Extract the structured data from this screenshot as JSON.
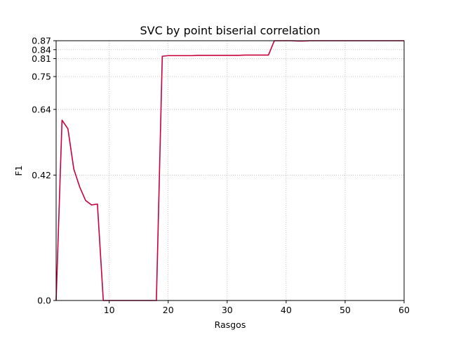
{
  "chart_data": {
    "type": "line",
    "title": "SVC by point biserial correlation",
    "xlabel": "Rasgos",
    "ylabel": "F1",
    "xlim": [
      1,
      60
    ],
    "ylim": [
      0,
      0.87
    ],
    "xticks": [
      10,
      20,
      30,
      40,
      50,
      60
    ],
    "xtick_labels": [
      "10",
      "20",
      "30",
      "40",
      "50",
      "60"
    ],
    "yticks": [
      0.0,
      0.42,
      0.64,
      0.75,
      0.81,
      0.84,
      0.87
    ],
    "ytick_labels": [
      "0.0",
      "0.42",
      "0.64",
      "0.75",
      "0.81",
      "0.84",
      "0.87"
    ],
    "grid": true,
    "series": [
      {
        "color": "#c8003c",
        "x": [
          1,
          2,
          3,
          4,
          5,
          6,
          7,
          8,
          9,
          10,
          11,
          12,
          13,
          14,
          15,
          16,
          17,
          18,
          19,
          20,
          21,
          22,
          23,
          24,
          25,
          26,
          27,
          28,
          29,
          30,
          31,
          32,
          33,
          34,
          35,
          36,
          37,
          38,
          39,
          40,
          41,
          42,
          43,
          44,
          45,
          46,
          47,
          48,
          49,
          50,
          51,
          52,
          53,
          54,
          55,
          56,
          57,
          58,
          59,
          60
        ],
        "y": [
          0.0,
          0.604,
          0.575,
          0.44,
          0.38,
          0.335,
          0.32,
          0.323,
          0.0,
          0.0,
          0.0,
          0.0,
          0.0,
          0.0,
          0.0,
          0.0,
          0.0,
          0.0,
          0.818,
          0.82,
          0.82,
          0.82,
          0.82,
          0.82,
          0.821,
          0.821,
          0.821,
          0.821,
          0.821,
          0.821,
          0.821,
          0.821,
          0.822,
          0.822,
          0.822,
          0.822,
          0.822,
          0.87,
          0.87,
          0.87,
          0.87,
          0.869,
          0.869,
          0.87,
          0.87,
          0.87,
          0.87,
          0.87,
          0.87,
          0.87,
          0.87,
          0.87,
          0.87,
          0.87,
          0.87,
          0.87,
          0.87,
          0.87,
          0.87,
          0.87
        ]
      }
    ]
  }
}
